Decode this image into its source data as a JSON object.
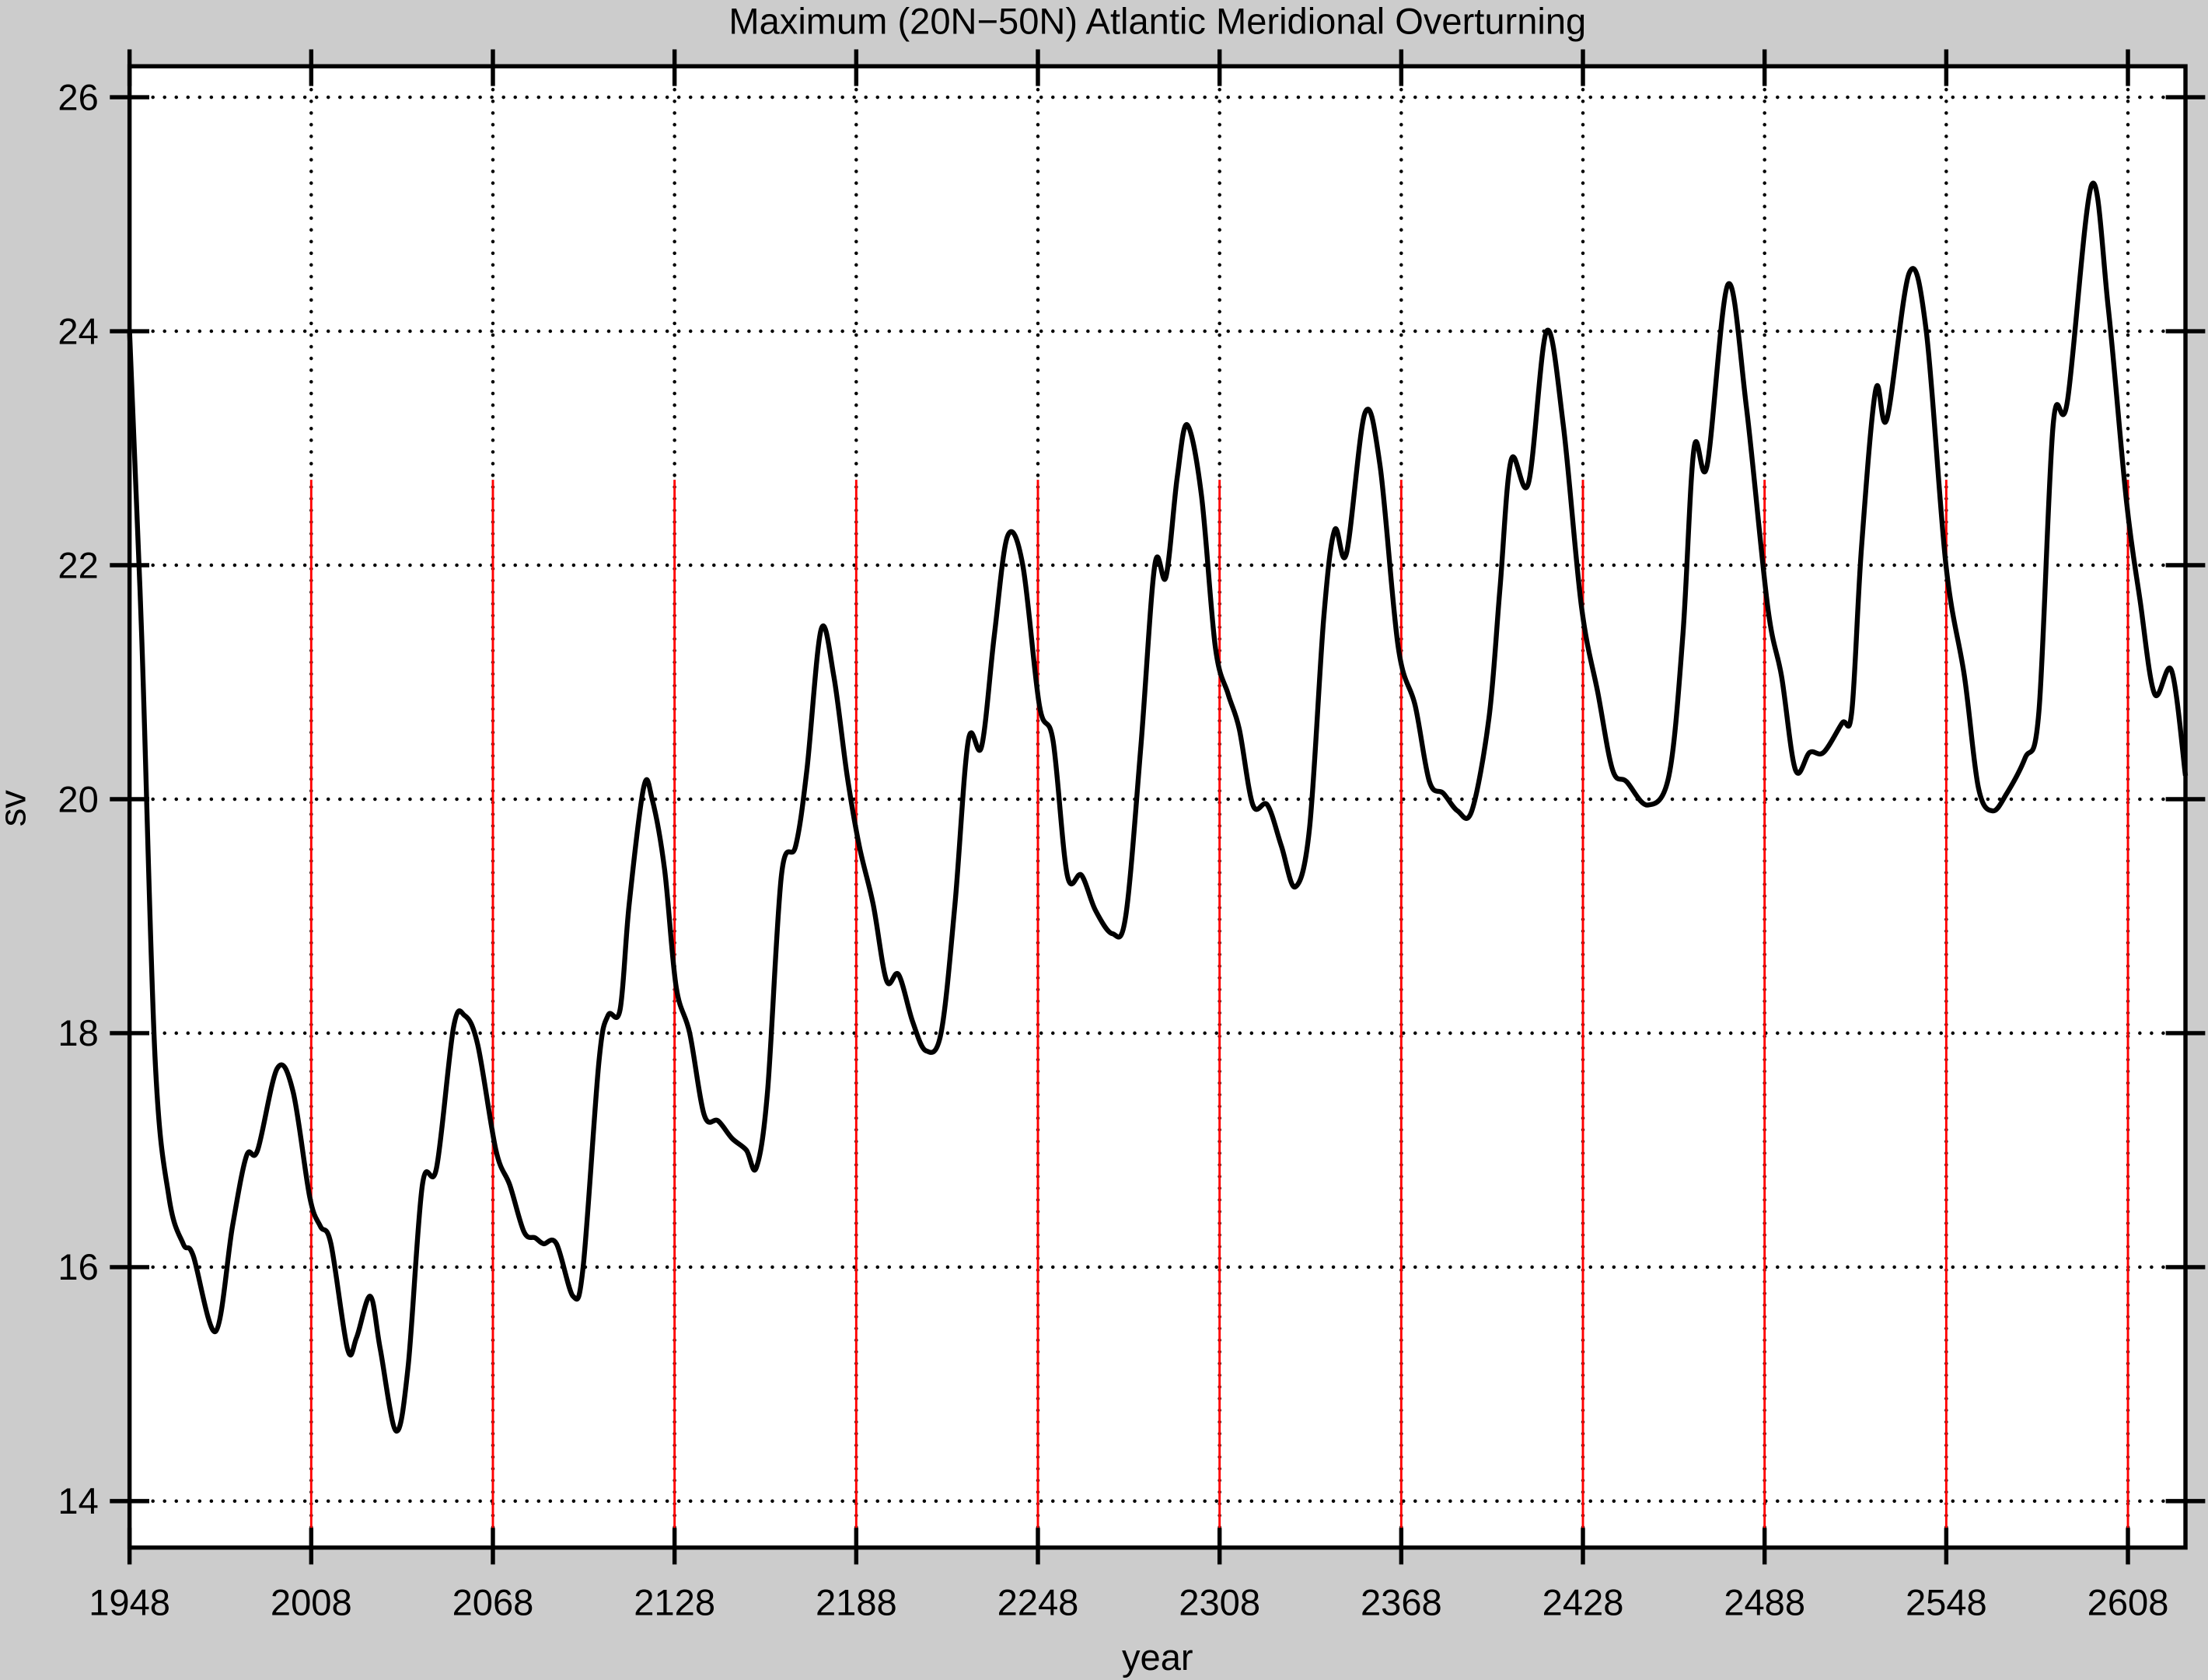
{
  "chart_data": {
    "type": "line",
    "title": "Maximum (20N−50N) Atlantic Meridional Overturning",
    "xlabel": "year",
    "ylabel": "sv",
    "xlim": [
      1948,
      2627
    ],
    "ylim": [
      13.6,
      26.3
    ],
    "xticks": [
      1948,
      2008,
      2068,
      2128,
      2188,
      2248,
      2308,
      2368,
      2428,
      2488,
      2548,
      2608
    ],
    "yticks": [
      14,
      16,
      18,
      20,
      22,
      24,
      26
    ],
    "grid": true,
    "grid_style": "dotted",
    "background_color": "#cccccc",
    "plot_background": "#ffffff",
    "line_color": "#000000",
    "marker_line_color": "#ff0000",
    "marker_lines": {
      "x": [
        2008,
        2068,
        2128,
        2188,
        2248,
        2308,
        2368,
        2428,
        2488,
        2548,
        2608
      ],
      "from_y": 22.73
    },
    "series": [
      {
        "x": [
          1948,
          1952,
          1956.4,
          1961,
          1965.7,
          1969,
          1976.4,
          1982,
          1986.6,
          1990.3,
          1996.8,
          2002,
          2007.5,
          2011,
          2014.5,
          2020,
          2023,
          2027.5,
          2030.8,
          2036,
          2040,
          2044.7,
          2049.4,
          2055,
          2058.7,
          2063,
          2069,
          2073.6,
          2078.3,
          2082,
          2084.7,
          2089,
          2094.5,
          2097.8,
          2103,
          2106,
          2110,
          2113,
          2117.8,
          2120.6,
          2124.7,
          2128.5,
          2133,
          2137.8,
          2142.4,
          2147,
          2151.7,
          2155,
          2158.7,
          2163.3,
          2168,
          2171.7,
          2176.4,
          2180.6,
          2185,
          2189,
          2193.6,
          2198,
          2202,
          2206.6,
          2211,
          2216,
          2220.6,
          2225,
          2229.4,
          2233.6,
          2238,
          2243,
          2248.5,
          2253,
          2257.7,
          2262.4,
          2267,
          2272.6,
          2277,
          2282,
          2286.6,
          2290.3,
          2294,
          2297.3,
          2302,
          2306.6,
          2310.8,
          2314.5,
          2319,
          2323.8,
          2328.4,
          2333,
          2337.7,
          2342.4,
          2346,
          2349.9,
          2356,
          2361,
          2367,
          2372.6,
          2377.3,
          2381.9,
          2386.6,
          2391.3,
          2397,
          2400.6,
          2404.3,
          2410,
          2416,
          2421.5,
          2427.5,
          2433,
          2437.8,
          2442.4,
          2449.4,
          2456.4,
          2461,
          2464.7,
          2469,
          2475.9,
          2482,
          2489,
          2493.6,
          2498.2,
          2502.9,
          2507.5,
          2513.6,
          2516.8,
          2520,
          2524.7,
          2528.4,
          2535.8,
          2541.4,
          2547.9,
          2554,
          2558.6,
          2563.3,
          2568,
          2574,
          2578.6,
          2583.3,
          2588,
          2596,
          2601.5,
          2607.5,
          2612,
          2616.8,
          2622.4,
          2627
        ],
        "y": [
          24.0,
          21.4,
          17.8,
          16.6,
          16.2,
          16.1,
          15.45,
          16.35,
          16.95,
          17.0,
          17.7,
          17.5,
          16.6,
          16.35,
          16.2,
          15.3,
          15.4,
          15.75,
          15.3,
          14.6,
          15.15,
          16.7,
          16.85,
          18.05,
          18.15,
          17.9,
          17.0,
          16.7,
          16.3,
          16.25,
          16.2,
          16.2,
          15.75,
          16.0,
          17.75,
          18.15,
          18.2,
          19.1,
          20.1,
          20.0,
          19.4,
          18.4,
          18.0,
          17.3,
          17.25,
          17.1,
          17.0,
          16.85,
          17.5,
          19.35,
          19.6,
          20.25,
          21.45,
          21.05,
          20.2,
          19.6,
          19.1,
          18.45,
          18.5,
          18.1,
          17.85,
          18.0,
          19.1,
          20.5,
          20.45,
          21.4,
          22.25,
          22.0,
          20.8,
          20.5,
          19.35,
          19.35,
          19.05,
          18.85,
          19.0,
          20.45,
          22.0,
          21.9,
          22.75,
          23.2,
          22.6,
          21.3,
          20.9,
          20.6,
          19.95,
          19.95,
          19.6,
          19.25,
          19.75,
          21.55,
          22.3,
          22.1,
          23.3,
          22.85,
          21.3,
          20.8,
          20.15,
          20.05,
          19.9,
          19.9,
          20.7,
          21.8,
          22.9,
          22.7,
          24.0,
          23.2,
          21.65,
          20.9,
          20.25,
          20.15,
          19.95,
          20.2,
          21.4,
          23.0,
          22.85,
          24.4,
          23.35,
          21.65,
          21.05,
          20.25,
          20.4,
          20.4,
          20.65,
          20.75,
          22.15,
          23.5,
          23.25,
          24.5,
          24.0,
          22.0,
          21.05,
          20.1,
          19.9,
          20.05,
          20.35,
          20.75,
          23.2,
          23.4,
          25.25,
          24.2,
          22.55,
          21.7,
          20.9,
          21.1,
          20.2
        ]
      }
    ]
  }
}
